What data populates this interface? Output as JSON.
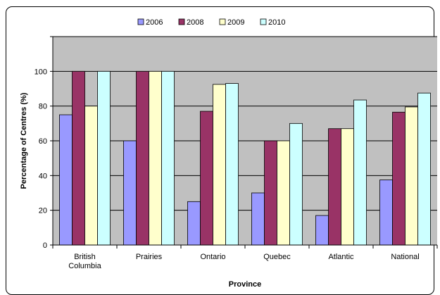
{
  "chart_data": {
    "type": "bar",
    "categories": [
      [
        "British",
        "Columbia"
      ],
      [
        "Prairies"
      ],
      [
        "Ontario"
      ],
      [
        "Quebec"
      ],
      [
        "Atlantic"
      ],
      [
        "National"
      ]
    ],
    "series": [
      {
        "name": "2006",
        "color": "#9999FF",
        "values": [
          75,
          60,
          25,
          30,
          17,
          37.5
        ]
      },
      {
        "name": "2008",
        "color": "#993366",
        "values": [
          100,
          100,
          77,
          60,
          67,
          76.5
        ]
      },
      {
        "name": "2009",
        "color": "#FFFFCC",
        "values": [
          80,
          100,
          92.5,
          60,
          67,
          79.5
        ]
      },
      {
        "name": "2010",
        "color": "#CCFFFF",
        "values": [
          100,
          100,
          93,
          70,
          83.5,
          87.5
        ]
      }
    ],
    "xlabel": "Province",
    "ylabel": "Percentage of Centres (%)",
    "ylim": [
      0,
      120
    ],
    "yticks": [
      0,
      20,
      40,
      60,
      80,
      100
    ],
    "plot_background": "#C0C0C0",
    "grid": true,
    "legend_position": "top"
  }
}
